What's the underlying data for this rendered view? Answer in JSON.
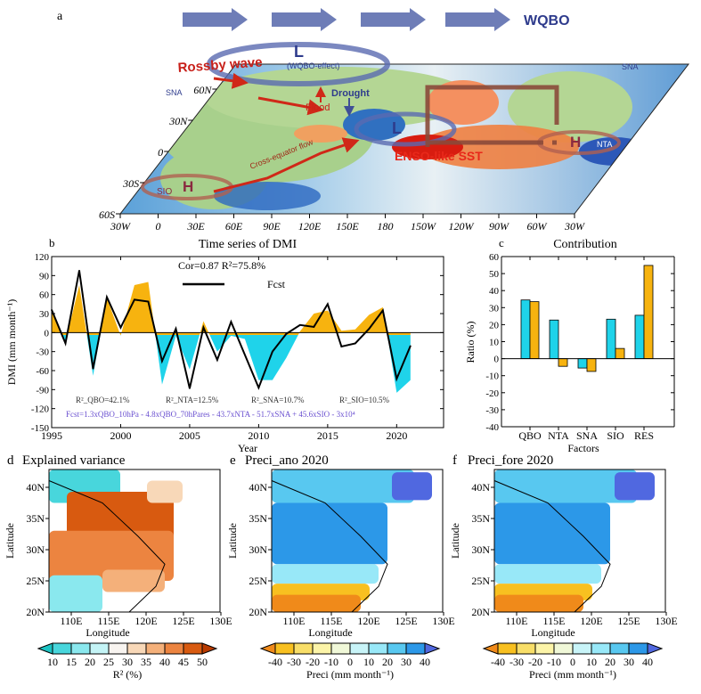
{
  "panel_a": {
    "letter": "a",
    "wqbo_label": "WQBO",
    "labels": {
      "rossby": "Rossby wave",
      "wqbo_effect": "(WQBO-effect)",
      "low1": "L",
      "low2": "L",
      "high1": "H",
      "high2": "H",
      "drought": "Drought",
      "flood": "Flood",
      "sna_left": "SNA",
      "sna_right": "SNA",
      "nta": "NTA",
      "sio": "SIO",
      "cross_equator": "Cross-equator flow",
      "enso": "ENSO-like SST"
    },
    "lat_ticks": [
      "60N",
      "30N",
      "0",
      "30S",
      "60S"
    ],
    "lon_ticks": [
      "30W",
      "0",
      "30E",
      "60E",
      "90E",
      "120E",
      "150E",
      "180",
      "150W",
      "120W",
      "90W",
      "60W",
      "30W"
    ]
  },
  "chart_data": [
    {
      "panel": "b",
      "type": "line",
      "title": "Time series of DMI",
      "xlabel": "Year",
      "ylabel": "DMI (mm month⁻¹)",
      "xlim": [
        1995,
        2023.4
      ],
      "ylim": [
        -150,
        120
      ],
      "xticks": [
        1995,
        2000,
        2005,
        2010,
        2015,
        2020
      ],
      "yticks": [
        120,
        90,
        60,
        30,
        0,
        -30,
        -60,
        -90,
        -120,
        -150
      ],
      "x": [
        1995,
        1996,
        1997,
        1998,
        1999,
        2000,
        2001,
        2002,
        2003,
        2004,
        2005,
        2006,
        2007,
        2008,
        2009,
        2010,
        2011,
        2012,
        2013,
        2014,
        2015,
        2016,
        2017,
        2018,
        2019,
        2020,
        2021
      ],
      "observed_shaded": [
        35,
        -15,
        75,
        -68,
        55,
        -5,
        75,
        80,
        -82,
        -5,
        -58,
        18,
        -30,
        -5,
        -10,
        -75,
        -75,
        -40,
        2,
        30,
        35,
        3,
        5,
        28,
        40,
        -95,
        -75
      ],
      "series": [
        {
          "name": "Fcst",
          "values": [
            36,
            -17,
            98,
            -57,
            56,
            8,
            52,
            49,
            -45,
            6,
            -88,
            8,
            -43,
            17,
            -35,
            -87,
            -30,
            -2,
            12,
            9,
            45,
            -22,
            -17,
            6,
            35,
            -73,
            -21
          ]
        }
      ],
      "colors": {
        "positive": "#f7b30f",
        "negative": "#1fd3ea",
        "line": "#000000"
      },
      "legend": "top-center",
      "annotations": {
        "cor": "Cor=0.87   R²=75.8%",
        "r2_qbo": "R²_QBO=42.1%",
        "r2_nta": "R²_NTA=12.5%",
        "r2_sna": "R²_SNA=10.7%",
        "r2_sio": "R²_SIO=10.5%",
        "equation": "Fcst=1.3xQBO_10hPa - 4.8xQBO_70hPares - 43.7xNTA - 51.7xSNA + 45.6xSIO - 3x10⁴"
      },
      "panel_letter": "b"
    },
    {
      "panel": "c",
      "type": "bar",
      "title": "Contribution",
      "xlabel": "Factors",
      "ylabel": "Ratio (%)",
      "ylim": [
        -40,
        60
      ],
      "yticks": [
        60,
        50,
        40,
        30,
        20,
        10,
        0,
        -10,
        -20,
        -30,
        -40
      ],
      "categories": [
        "QBO",
        "NTA",
        "SNA",
        "SIO",
        "RES"
      ],
      "series": [
        {
          "values": [
            34.5,
            22.7,
            -5.5,
            23.2,
            25.5
          ],
          "color": "#1fd3ea"
        },
        {
          "values": [
            33.5,
            -4.5,
            -7.5,
            6.0,
            54.8
          ],
          "color": "#f7b30f"
        }
      ],
      "panel_letter": "c"
    }
  ],
  "maps": [
    {
      "letter": "d",
      "title": "Explained variance",
      "colorbar_label": "R² (%)",
      "colorbar_ticks": [
        "10",
        "15",
        "20",
        "25",
        "30",
        "35",
        "40",
        "45",
        "50"
      ],
      "colorbar_colors": [
        "#1cc4c4",
        "#48d6dc",
        "#8ae8ee",
        "#c4f4f6",
        "#f8f4f0",
        "#f8d8b8",
        "#f4b07a",
        "#ec8440",
        "#d85a10",
        "#b83a00"
      ]
    },
    {
      "letter": "e",
      "title": "Preci_ano 2020",
      "colorbar_label": "Preci (mm month⁻¹)",
      "colorbar_ticks": [
        "-40",
        "-30",
        "-20",
        "-10",
        "0",
        "10",
        "20",
        "30",
        "40"
      ],
      "colorbar_colors": [
        "#f08a1a",
        "#f8c020",
        "#f8de68",
        "#fcf4a8",
        "#f0f8d8",
        "#c8f4f8",
        "#98e8f8",
        "#58c8f0",
        "#2c98e8",
        "#5068e0"
      ]
    },
    {
      "letter": "f",
      "title": "Preci_fore 2020",
      "colorbar_label": "Preci (mm month⁻¹)",
      "colorbar_ticks": [
        "-40",
        "-30",
        "-20",
        "-10",
        "0",
        "10",
        "20",
        "30",
        "40"
      ],
      "colorbar_colors": [
        "#f08a1a",
        "#f8c020",
        "#f8de68",
        "#fcf4a8",
        "#f0f8d8",
        "#c8f4f8",
        "#98e8f8",
        "#58c8f0",
        "#2c98e8",
        "#5068e0"
      ]
    }
  ],
  "map_axes": {
    "xlabel": "Longitude",
    "ylabel": "Latitude",
    "lon_ticks": [
      "110E",
      "115E",
      "120E",
      "125E",
      "130E"
    ],
    "lat_ticks": [
      "40N",
      "35N",
      "30N",
      "25N",
      "20N"
    ]
  }
}
